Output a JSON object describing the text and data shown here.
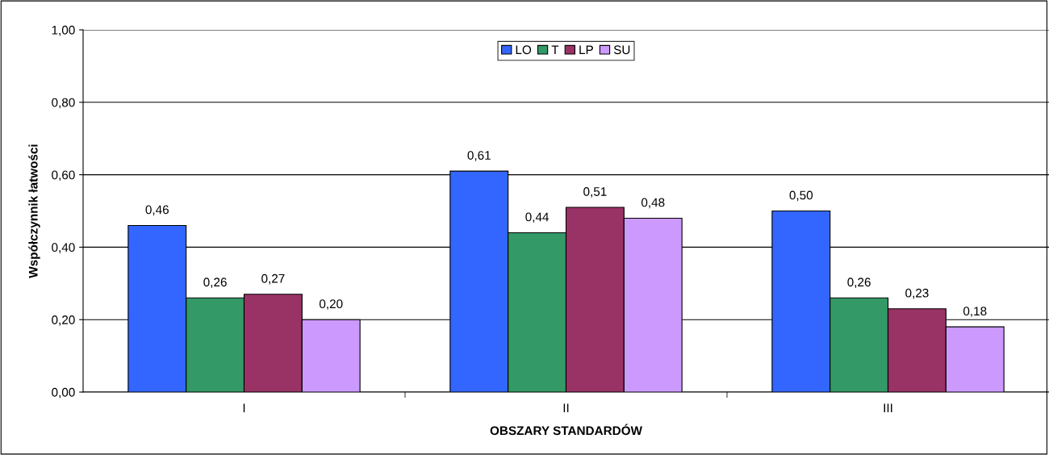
{
  "chart_data": {
    "type": "bar",
    "xlabel": "OBSZARY STANDARDÓW",
    "ylabel": "Współczynnik łatwości",
    "categories": [
      "I",
      "II",
      "III"
    ],
    "series": [
      {
        "name": "LO",
        "color": "#3366ff",
        "values": [
          0.46,
          0.61,
          0.5
        ],
        "value_labels": [
          "0,46",
          "0,61",
          "0,50"
        ]
      },
      {
        "name": "T",
        "color": "#339966",
        "values": [
          0.26,
          0.44,
          0.26
        ],
        "value_labels": [
          "0,26",
          "0,44",
          "0,26"
        ]
      },
      {
        "name": "LP",
        "color": "#993366",
        "values": [
          0.27,
          0.51,
          0.23
        ],
        "value_labels": [
          "0,27",
          "0,51",
          "0,23"
        ]
      },
      {
        "name": "SU",
        "color": "#cc99ff",
        "values": [
          0.2,
          0.48,
          0.18
        ],
        "value_labels": [
          "0,20",
          "0,48",
          "0,18"
        ]
      }
    ],
    "ylim": [
      0,
      1
    ],
    "yticks": [
      {
        "value": 0,
        "label": "0,00"
      },
      {
        "value": 0.2,
        "label": "0,20"
      },
      {
        "value": 0.4,
        "label": "0,40"
      },
      {
        "value": 0.6,
        "label": "0,60"
      },
      {
        "value": 0.8,
        "label": "0,80"
      },
      {
        "value": 1,
        "label": "1,00"
      }
    ],
    "grid": "y",
    "legend": "top"
  }
}
